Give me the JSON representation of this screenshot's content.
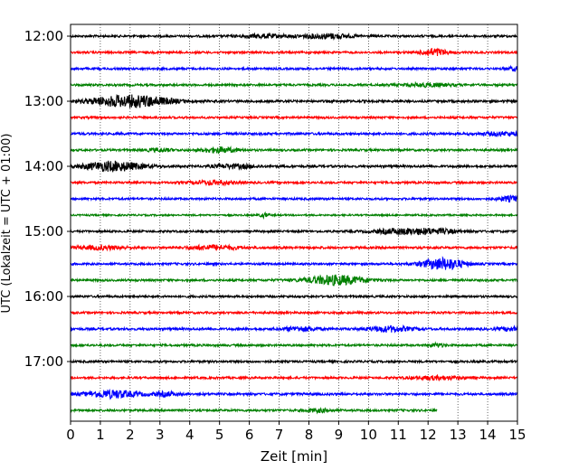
{
  "chart_data": {
    "type": "line",
    "title": "",
    "xlabel": "Zeit  [min]",
    "ylabel": "UTC (Lokalzeit = UTC + 01:00)",
    "xlim": [
      0,
      15
    ],
    "x_ticks": [
      "0",
      "1",
      "2",
      "3",
      "4",
      "5",
      "6",
      "7",
      "8",
      "9",
      "10",
      "11",
      "12",
      "13",
      "14",
      "15"
    ],
    "y_ticks": [
      "12:00",
      "13:00",
      "14:00",
      "15:00",
      "16:00",
      "17:00"
    ],
    "grid": "vertical dotted",
    "trace_interval_min": 15,
    "colors": [
      "#000000",
      "#ff0000",
      "#0000ff",
      "#008000"
    ],
    "series": [
      {
        "start": "12:00",
        "color": "#000000",
        "noise": 1.0,
        "end": 15,
        "bursts": [
          [
            6.5,
            1.5,
            0.6
          ],
          [
            8.6,
            2.2,
            0.6
          ]
        ]
      },
      {
        "start": "12:15",
        "color": "#ff0000",
        "noise": 1.0,
        "end": 15,
        "bursts": [
          [
            12.2,
            3.5,
            0.3
          ]
        ]
      },
      {
        "start": "12:30",
        "color": "#0000ff",
        "noise": 1.0,
        "end": 15,
        "bursts": [
          [
            14.9,
            1.5,
            0.2
          ]
        ]
      },
      {
        "start": "12:45",
        "color": "#008000",
        "noise": 1.0,
        "end": 15,
        "bursts": [
          [
            12.0,
            1.5,
            0.6
          ]
        ]
      },
      {
        "start": "13:00",
        "color": "#000000",
        "noise": 1.1,
        "end": 15,
        "bursts": [
          [
            2.3,
            5.0,
            0.8
          ],
          [
            1.2,
            2.0,
            0.6
          ]
        ]
      },
      {
        "start": "13:15",
        "color": "#ff0000",
        "noise": 1.0,
        "end": 15,
        "bursts": []
      },
      {
        "start": "13:30",
        "color": "#0000ff",
        "noise": 1.1,
        "end": 15,
        "bursts": [
          [
            14.5,
            1.5,
            0.5
          ]
        ]
      },
      {
        "start": "13:45",
        "color": "#008000",
        "noise": 1.0,
        "end": 15,
        "bursts": [
          [
            5.0,
            2.5,
            0.4
          ],
          [
            3.0,
            1.5,
            0.3
          ]
        ]
      },
      {
        "start": "14:00",
        "color": "#000000",
        "noise": 1.1,
        "end": 15,
        "bursts": [
          [
            1.4,
            4.5,
            0.7
          ],
          [
            5.5,
            1.8,
            0.5
          ]
        ]
      },
      {
        "start": "14:15",
        "color": "#ff0000",
        "noise": 1.0,
        "end": 15,
        "bursts": [
          [
            4.8,
            1.8,
            0.5
          ]
        ]
      },
      {
        "start": "14:30",
        "color": "#0000ff",
        "noise": 1.0,
        "end": 15,
        "bursts": [
          [
            14.8,
            2.5,
            0.3
          ]
        ]
      },
      {
        "start": "14:45",
        "color": "#008000",
        "noise": 0.8,
        "end": 15,
        "bursts": [
          [
            6.5,
            2.0,
            0.1
          ]
        ]
      },
      {
        "start": "15:00",
        "color": "#000000",
        "noise": 1.0,
        "end": 15,
        "bursts": [
          [
            12.0,
            2.5,
            0.7
          ],
          [
            10.8,
            1.6,
            0.5
          ]
        ]
      },
      {
        "start": "15:15",
        "color": "#ff0000",
        "noise": 1.1,
        "end": 15,
        "bursts": [
          [
            4.8,
            2.0,
            0.6
          ],
          [
            1.0,
            1.5,
            0.6
          ]
        ]
      },
      {
        "start": "15:30",
        "color": "#0000ff",
        "noise": 1.0,
        "end": 15,
        "bursts": [
          [
            12.5,
            5.5,
            0.5
          ]
        ]
      },
      {
        "start": "15:45",
        "color": "#008000",
        "noise": 1.0,
        "end": 15,
        "bursts": [
          [
            8.9,
            4.5,
            0.7
          ]
        ]
      },
      {
        "start": "16:00",
        "color": "#000000",
        "noise": 1.0,
        "end": 15,
        "bursts": []
      },
      {
        "start": "16:15",
        "color": "#ff0000",
        "noise": 1.0,
        "end": 15,
        "bursts": []
      },
      {
        "start": "16:30",
        "color": "#0000ff",
        "noise": 1.1,
        "end": 15,
        "bursts": [
          [
            10.7,
            2.5,
            0.5
          ],
          [
            7.7,
            2.0,
            0.4
          ],
          [
            14.8,
            1.6,
            0.3
          ]
        ]
      },
      {
        "start": "16:45",
        "color": "#008000",
        "noise": 1.0,
        "end": 15,
        "bursts": [
          [
            12.3,
            1.5,
            0.2
          ]
        ]
      },
      {
        "start": "17:00",
        "color": "#000000",
        "noise": 1.0,
        "end": 15,
        "bursts": []
      },
      {
        "start": "17:15",
        "color": "#ff0000",
        "noise": 1.0,
        "end": 15,
        "bursts": [
          [
            12.3,
            1.6,
            0.6
          ]
        ]
      },
      {
        "start": "17:30",
        "color": "#0000ff",
        "noise": 1.1,
        "end": 15,
        "bursts": [
          [
            1.4,
            3.5,
            0.6
          ],
          [
            3.2,
            1.8,
            0.3
          ]
        ]
      },
      {
        "start": "17:45",
        "color": "#008000",
        "noise": 1.0,
        "end": 12.3,
        "bursts": [
          [
            8.3,
            1.5,
            0.3
          ]
        ]
      }
    ]
  }
}
